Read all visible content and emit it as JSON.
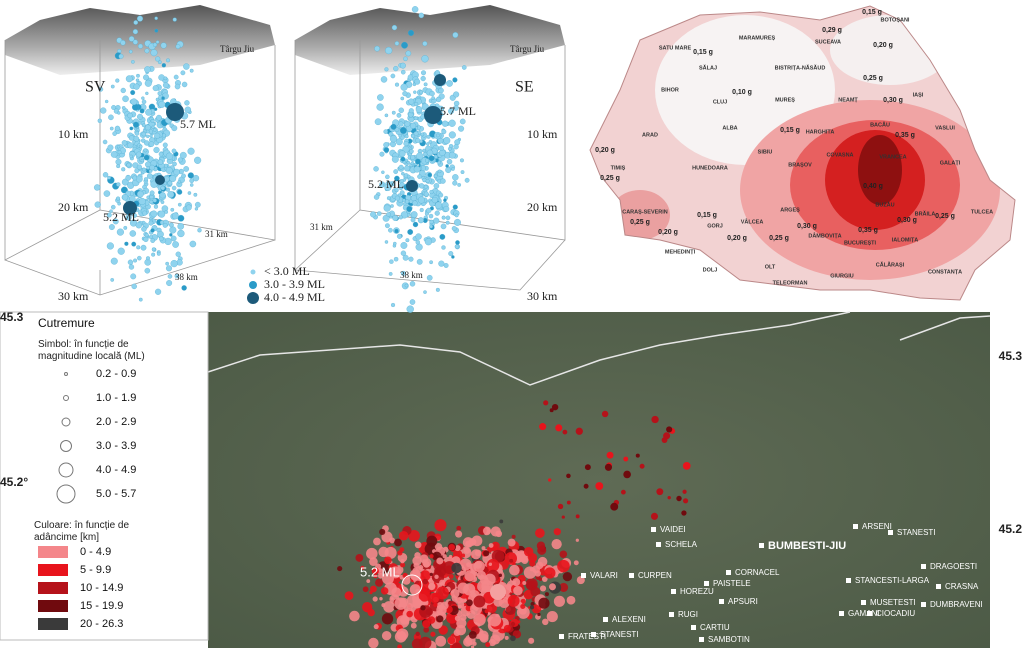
{
  "panels3d": [
    {
      "town": "Târgu Jiu",
      "view": "SV",
      "depths": [
        "10 km",
        "20 km",
        "30 km"
      ],
      "events": [
        "5.7 ML",
        "5.2 ML"
      ],
      "axes": [
        "31 km",
        "38 km"
      ]
    },
    {
      "town": "Târgu Jiu",
      "view": "SE",
      "depths": [
        "10 km",
        "20 km",
        "30 km"
      ],
      "events": [
        "5.7 ML",
        "5.2 ML"
      ],
      "axes": [
        "31 km",
        "38 km"
      ]
    }
  ],
  "legend3d": [
    "< 3.0 ML",
    "3.0 - 3.9 ML",
    "4.0 - 4.9 ML"
  ],
  "pga_map": {
    "counties": [
      "SATU MARE",
      "MARAMUREȘ",
      "SUCEAVA",
      "BOTOȘANI",
      "SĂLAJ",
      "BISTRIȚA-NĂSĂUD",
      "BIHOR",
      "CLUJ",
      "MUREȘ",
      "IAȘI",
      "NEAMȚ",
      "HARGHITA",
      "ARAD",
      "ALBA",
      "BACĂU",
      "VASLUI",
      "SIBIU",
      "COVASNA",
      "TIMIȘ",
      "HUNEDOARA",
      "BRAȘOV",
      "VRANCEA",
      "GALAȚI",
      "CARAȘ-SEVERIN",
      "GORJ",
      "VÂLCEA",
      "ARGEȘ",
      "BUZĂU",
      "BRĂILA",
      "TULCEA",
      "MEHEDINȚI",
      "DOLJ",
      "OLT",
      "DÂMBOVIȚA",
      "BUCUREȘTI",
      "IALOMIȚA",
      "TELEORMAN",
      "GIURGIU",
      "CĂLĂRAȘI",
      "CONSTANȚA"
    ],
    "values": [
      "0,15 g",
      "0,29 g",
      "0,20 g",
      "0,15 g",
      "0,10 g",
      "0,25 g",
      "0,30 g",
      "0,15 g",
      "0,35 g",
      "0,20 g",
      "0,25 g",
      "0,40 g",
      "0,30 g",
      "0,35 g",
      "0,30 g",
      "0,25 g",
      "0,15 g",
      "0,25 g",
      "0,20 g",
      "0,20 g",
      "0,25 g"
    ]
  },
  "bottom_map": {
    "legend": {
      "title": "Cutremure",
      "symbol_title": "Simbol: în funcție de magnitudine locală (ML)",
      "sizes": [
        "0.2 - 0.9",
        "1.0 - 1.9",
        "2.0 - 2.9",
        "3.0 - 3.9",
        "4.0 - 4.9",
        "5.0 - 5.7"
      ],
      "color_title": "Culoare: în funcție de adâncime [km]",
      "depths": [
        "0 - 4.9",
        "5 - 9.9",
        "10 - 14.9",
        "15 - 19.9",
        "20 - 26.3"
      ]
    },
    "coords": [
      "45.3",
      "45.2°",
      "45.3",
      "45.2"
    ],
    "event": "5.2 ML",
    "places": [
      "VAIDEI",
      "SCHELA",
      "BUMBESTI-JIU",
      "ARSENI",
      "STANESTI",
      "VALARI",
      "CURPEN",
      "CORNACEL",
      "PAISTELE",
      "HOREZU",
      "APSURI",
      "STANCESTI-LARGA",
      "DRAGOESTI",
      "CRASNA",
      "MUSETESTI",
      "GAMANI",
      "CIOCADIU",
      "DUMBRAVENI",
      "RUGI",
      "CARTIU",
      "ALEXENI",
      "STANESTI",
      "FRATESTI",
      "SAMBOTIN"
    ]
  }
}
